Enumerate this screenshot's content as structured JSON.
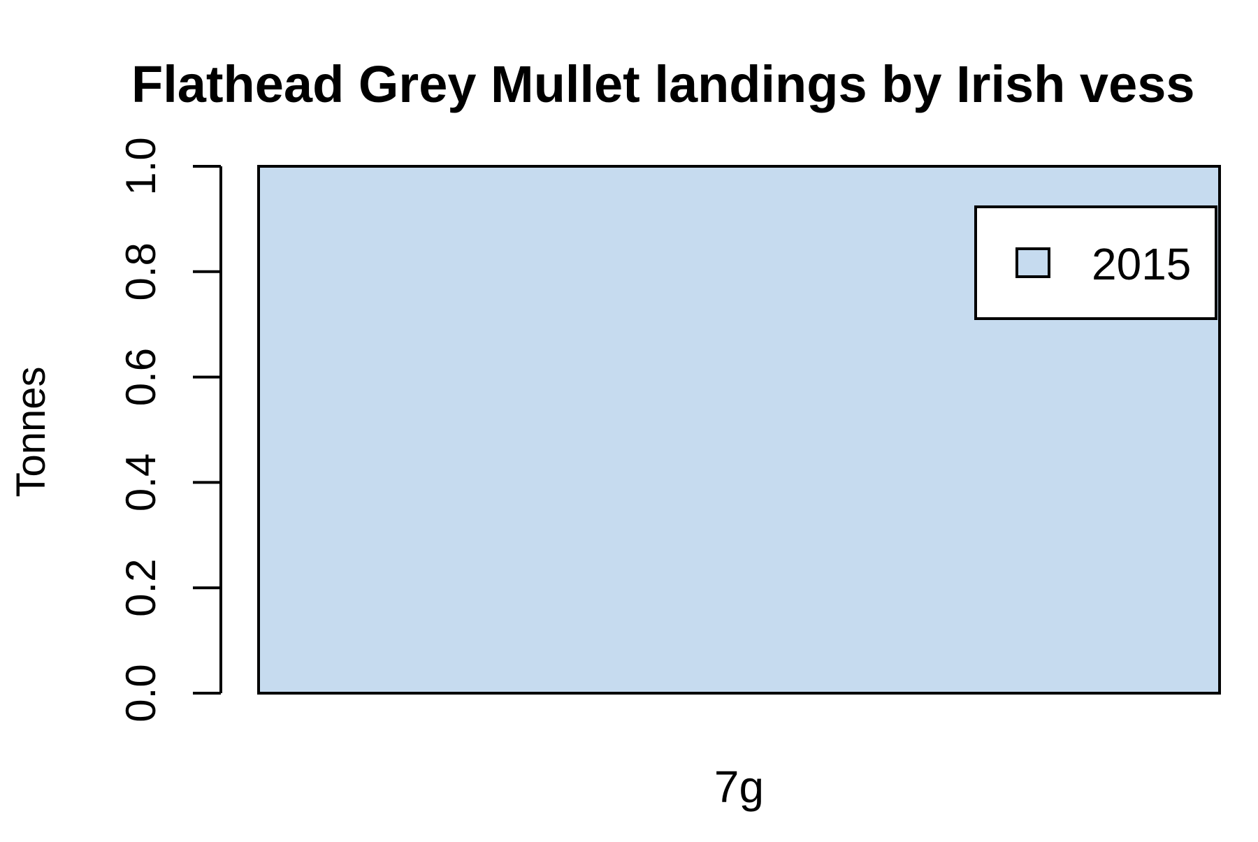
{
  "chart_data": {
    "type": "bar",
    "title": "Flathead Grey Mullet landings by Irish vess",
    "xlabel": "",
    "ylabel": "Tonnes",
    "ylim": [
      0,
      1
    ],
    "yticks": [
      "0.0",
      "0.2",
      "0.4",
      "0.6",
      "0.8",
      "1.0"
    ],
    "categories": [
      "7g"
    ],
    "series": [
      {
        "name": "2015",
        "values": [
          1
        ],
        "color": "#c6dbef"
      }
    ],
    "legend": {
      "position": "top-right",
      "entries": [
        "2015"
      ]
    },
    "grid": false
  }
}
